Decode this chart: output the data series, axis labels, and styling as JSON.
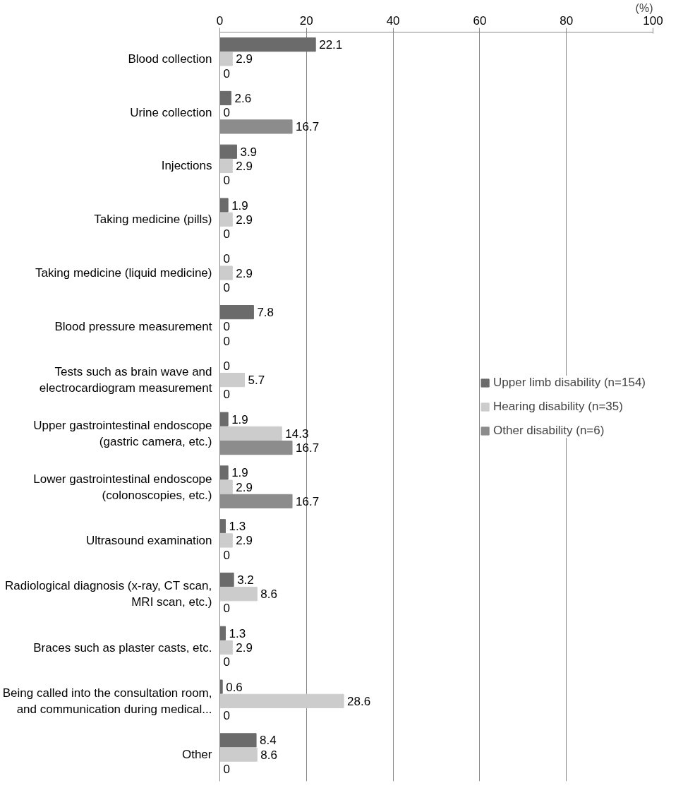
{
  "chart_data": {
    "type": "bar",
    "orientation": "horizontal",
    "xlabel": "(%)",
    "categories": [
      "Blood collection",
      "Urine collection",
      "Injections",
      "Taking medicine (pills)",
      "Taking medicine (liquid medicine)",
      "Blood pressure measurement",
      "Tests such as brain wave and electrocardiogram measurement",
      "Upper gastrointestinal endoscope (gastric camera, etc.)",
      "Lower gastrointestinal endoscope (colonoscopies, etc.)",
      "Ultrasound examination",
      "Radiological diagnosis (x-ray, CT scan, MRI scan, etc.)",
      "Braces such as plaster casts, etc.",
      "Being called into the consultation room, and communication during medical...",
      "Other"
    ],
    "series": [
      {
        "name": "Upper limb disability (n=154)",
        "color": "#6b6b6b",
        "values": [
          22.1,
          2.6,
          3.9,
          1.9,
          0,
          7.8,
          0,
          1.9,
          1.9,
          1.3,
          3.2,
          1.3,
          0.6,
          8.4
        ]
      },
      {
        "name": "Hearing disability (n=35)",
        "color": "#cccccc",
        "values": [
          2.9,
          0,
          2.9,
          2.9,
          2.9,
          0,
          5.7,
          14.3,
          2.9,
          2.9,
          8.6,
          2.9,
          28.6,
          8.6
        ]
      },
      {
        "name": "Other disability (n=6)",
        "color": "#8c8c8c",
        "values": [
          0,
          16.7,
          0,
          0,
          0,
          0,
          0,
          16.7,
          16.7,
          0,
          0,
          0,
          0,
          0
        ]
      }
    ],
    "xlim": [
      0,
      100
    ],
    "xticks": [
      0,
      20,
      40,
      60,
      80,
      100
    ],
    "grid": "x",
    "legend": "right",
    "data_labels": true
  }
}
